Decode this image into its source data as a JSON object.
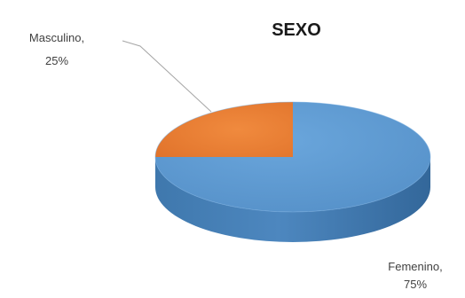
{
  "chart_data": {
    "type": "pie",
    "title": "SEXO",
    "slices": [
      {
        "label": "Femenino",
        "percent_label": "75%",
        "value": 75,
        "color": "#5b9bd5"
      },
      {
        "label": "Masculino",
        "percent_label": "25%",
        "value": 25,
        "color": "#ed7d31"
      }
    ],
    "style": "3d",
    "legend": "none",
    "data_labels": "outside-with-leader"
  }
}
